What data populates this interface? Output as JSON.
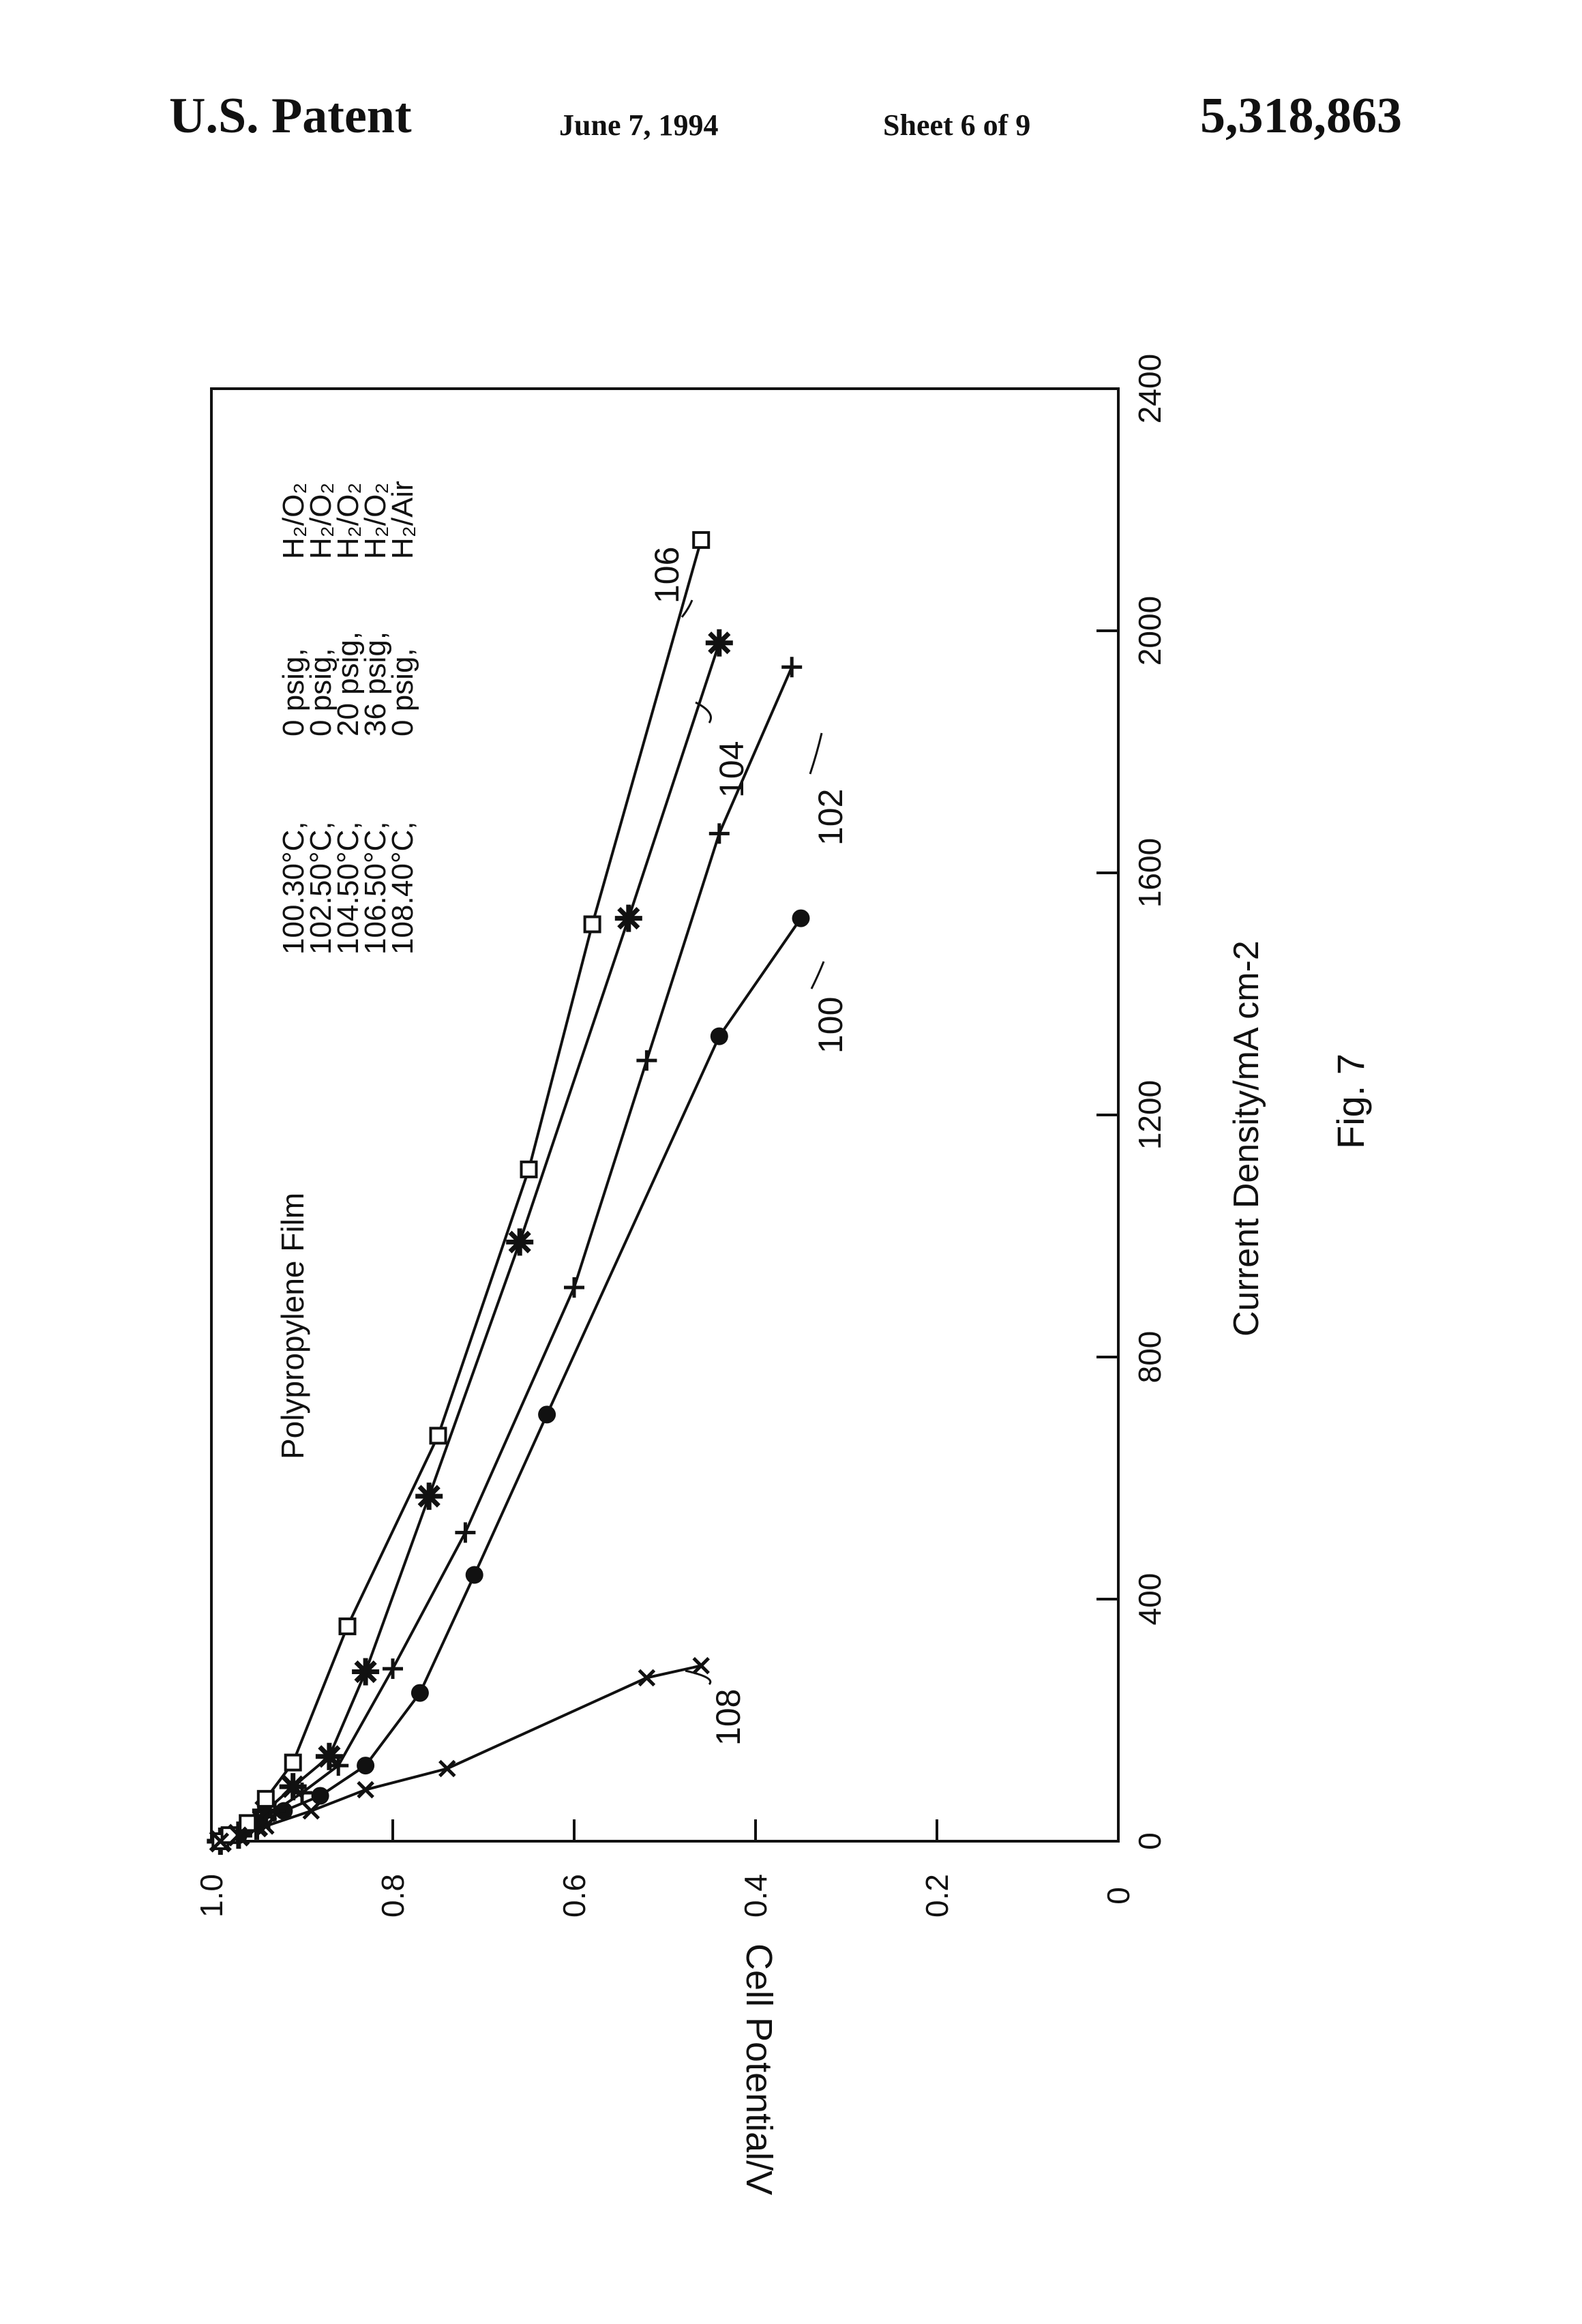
{
  "header": {
    "patent_label": "U.S. Patent",
    "date": "June 7, 1994",
    "sheet": "Sheet 6 of 9",
    "patent_number": "5,318,863"
  },
  "figure": {
    "caption": "Fig. 7",
    "title": "Polypropylene Film",
    "legend": [
      {
        "id": "100.",
        "temp": "30°C,",
        "pressure": "0 psig,",
        "gas": "H₂/O₂"
      },
      {
        "id": "102.",
        "temp": "50°C,",
        "pressure": "0 psig,",
        "gas": "H₂/O₂"
      },
      {
        "id": "104.",
        "temp": "50°C,",
        "pressure": "20 psig,",
        "gas": "H₂/O₂"
      },
      {
        "id": "106.",
        "temp": "50°C,",
        "pressure": "36 psig,",
        "gas": "H₂/O₂"
      },
      {
        "id": "108.",
        "temp": "40°C,",
        "pressure": "0 psig,",
        "gas": "H₂/Air"
      }
    ]
  },
  "chart_data": {
    "type": "line",
    "title": "Polypropylene Film",
    "xlabel": "Current Density/mA cm-2",
    "ylabel": "Cell Potential/V",
    "xlim": [
      0,
      2400
    ],
    "ylim": [
      0,
      1.0
    ],
    "x_ticks": [
      "0",
      "400",
      "800",
      "1200",
      "1600",
      "2000",
      "2400"
    ],
    "y_ticks": [
      "0",
      "0.2",
      "0.4",
      "0.6",
      "0.8",
      "1.0"
    ],
    "grid": false,
    "legend_position": "top-right",
    "series": [
      {
        "name": "100",
        "marker": "circle",
        "x": [
          0,
          10,
          25,
          50,
          75,
          125,
          245,
          440,
          705,
          1330,
          1525
        ],
        "y": [
          0.99,
          0.97,
          0.96,
          0.92,
          0.88,
          0.83,
          0.77,
          0.71,
          0.63,
          0.44,
          0.35
        ]
      },
      {
        "name": "102",
        "marker": "plus",
        "x": [
          0,
          10,
          30,
          50,
          80,
          125,
          285,
          510,
          915,
          1290,
          1665,
          1940
        ],
        "y": [
          0.99,
          0.97,
          0.95,
          0.93,
          0.9,
          0.86,
          0.8,
          0.72,
          0.6,
          0.52,
          0.44,
          0.36
        ]
      },
      {
        "name": "104",
        "marker": "asterisk",
        "x": [
          0,
          10,
          25,
          50,
          90,
          140,
          280,
          570,
          990,
          1525,
          1980
        ],
        "y": [
          0.99,
          0.97,
          0.95,
          0.94,
          0.91,
          0.87,
          0.83,
          0.76,
          0.66,
          0.54,
          0.44
        ]
      },
      {
        "name": "106",
        "marker": "square",
        "x": [
          0,
          10,
          30,
          70,
          130,
          355,
          670,
          1110,
          1515,
          2150
        ],
        "y": [
          0.99,
          0.98,
          0.96,
          0.94,
          0.91,
          0.85,
          0.75,
          0.65,
          0.58,
          0.46
        ]
      },
      {
        "name": "108",
        "marker": "x",
        "x": [
          0,
          10,
          25,
          50,
          85,
          120,
          270,
          290
        ],
        "y": [
          0.99,
          0.97,
          0.94,
          0.89,
          0.83,
          0.74,
          0.52,
          0.46
        ]
      }
    ],
    "annotations": [
      "100",
      "102",
      "104",
      "106",
      "108"
    ]
  }
}
